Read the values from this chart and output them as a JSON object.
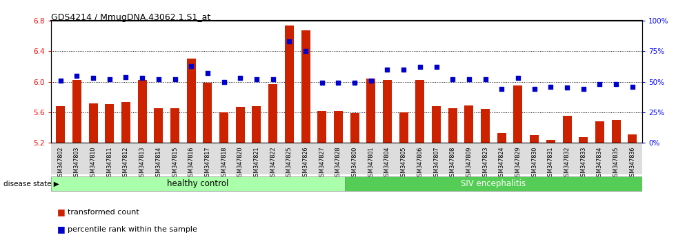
{
  "title": "GDS4214 / MmugDNA.43062.1.S1_at",
  "categories": [
    "GSM347802",
    "GSM347803",
    "GSM347810",
    "GSM347811",
    "GSM347812",
    "GSM347813",
    "GSM347814",
    "GSM347815",
    "GSM347816",
    "GSM347817",
    "GSM347818",
    "GSM347820",
    "GSM347821",
    "GSM347822",
    "GSM347825",
    "GSM347826",
    "GSM347827",
    "GSM347828",
    "GSM347800",
    "GSM347801",
    "GSM347804",
    "GSM347805",
    "GSM347806",
    "GSM347807",
    "GSM347808",
    "GSM347809",
    "GSM347823",
    "GSM347824",
    "GSM347829",
    "GSM347830",
    "GSM347831",
    "GSM347832",
    "GSM347833",
    "GSM347834",
    "GSM347835",
    "GSM347836"
  ],
  "bar_values": [
    5.68,
    6.02,
    5.72,
    5.71,
    5.73,
    6.02,
    5.65,
    5.65,
    6.3,
    5.99,
    5.6,
    5.67,
    5.68,
    5.97,
    6.74,
    6.67,
    5.62,
    5.62,
    5.59,
    6.04,
    6.02,
    5.6,
    6.02,
    5.68,
    5.65,
    5.69,
    5.64,
    5.33,
    5.95,
    5.3,
    5.24,
    5.55,
    5.27,
    5.48,
    5.5,
    5.31
  ],
  "percentile_values": [
    51,
    55,
    53,
    52,
    54,
    53,
    52,
    52,
    63,
    57,
    50,
    53,
    52,
    52,
    83,
    75,
    49,
    49,
    49,
    51,
    60,
    60,
    62,
    62,
    52,
    52,
    52,
    44,
    53,
    44,
    46,
    45,
    44,
    48,
    48,
    46
  ],
  "ylim_left": [
    5.2,
    6.8
  ],
  "ylim_right": [
    0,
    100
  ],
  "yticks_left": [
    5.2,
    5.6,
    6.0,
    6.4,
    6.8
  ],
  "yticks_right": [
    0,
    25,
    50,
    75,
    100
  ],
  "ytick_labels_right": [
    "0%",
    "25%",
    "50%",
    "75%",
    "100%"
  ],
  "bar_color": "#CC2200",
  "dot_color": "#0000CC",
  "healthy_count": 18,
  "group1_label": "healthy control",
  "group2_label": "SIV encephalitis",
  "group1_color": "#AAFFAA",
  "group2_color": "#55CC55",
  "disease_state_label": "disease state",
  "legend_bar_label": "transformed count",
  "legend_dot_label": "percentile rank within the sample",
  "bg_color": "#DDDDDD"
}
